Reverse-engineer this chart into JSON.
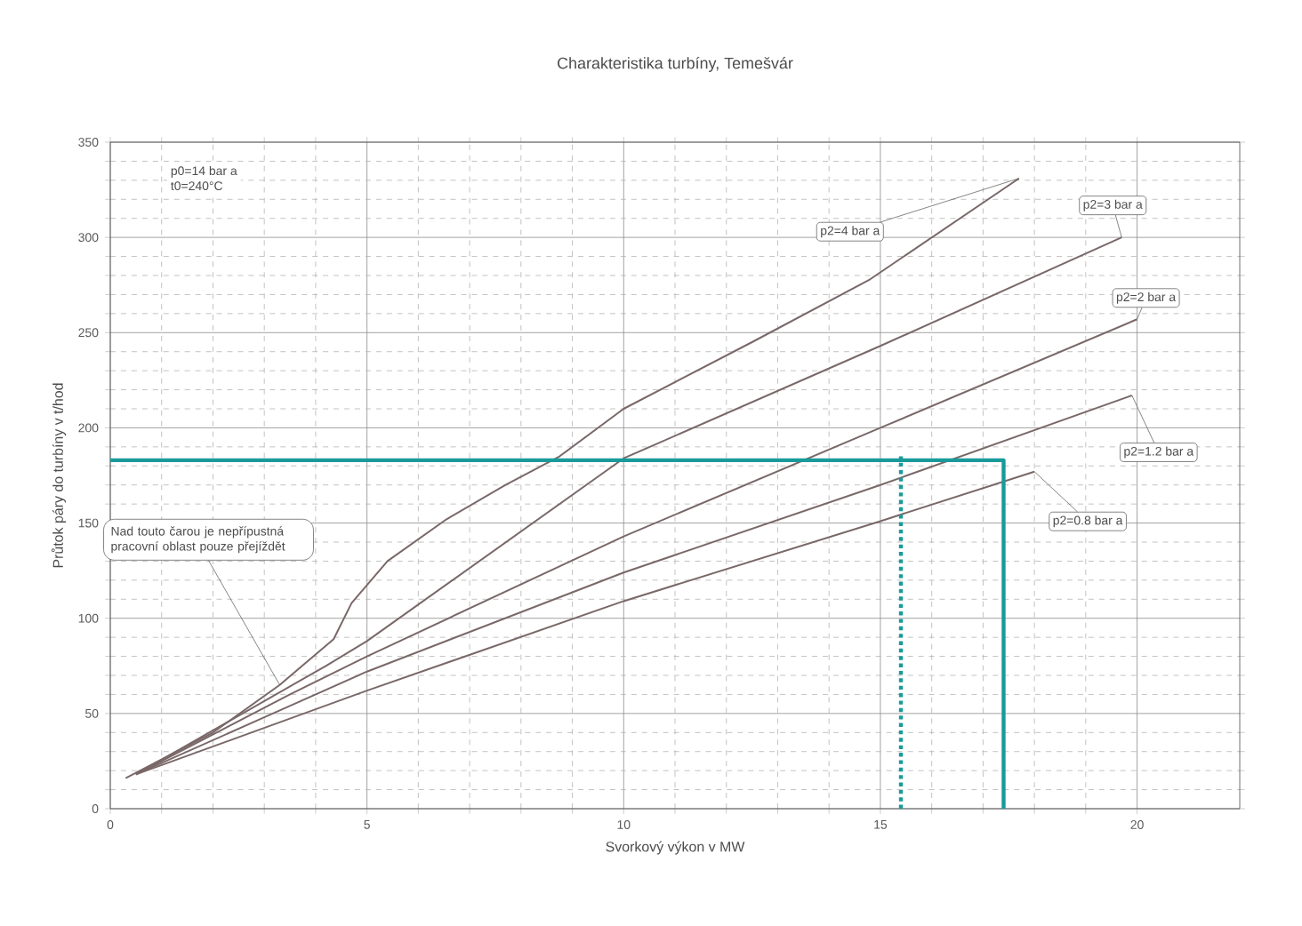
{
  "chart_data": {
    "type": "line",
    "title": "Charakteristika turbíny, Temešvár",
    "xlabel": "Svorkový výkon v MW",
    "ylabel": "Průtok páry do turbíny v t/hod",
    "xlim": [
      0,
      22
    ],
    "ylim": [
      0,
      350
    ],
    "xticks": [
      0,
      5,
      10,
      15,
      20
    ],
    "yticks": [
      0,
      50,
      100,
      150,
      200,
      250,
      300,
      350
    ],
    "grid": true,
    "marker": "none",
    "line_style": "solid",
    "series": [
      {
        "name": "p2=4 bar a",
        "color": "#7a6868",
        "x": [
          0.3,
          2,
          3.3,
          4.35,
          4.7,
          5.4,
          6.55,
          7.7,
          8.75,
          10,
          12.5,
          14.8,
          17.7
        ],
        "values": [
          16,
          40,
          65,
          89,
          108,
          130,
          152,
          170,
          185,
          210,
          245,
          278,
          331
        ]
      },
      {
        "name": "p2=3 bar a",
        "color": "#7a6868",
        "x": [
          0.5,
          4.2,
          5,
          10,
          15,
          19.7
        ],
        "values": [
          18,
          75,
          88,
          184,
          243,
          300
        ]
      },
      {
        "name": "p2=2 bar a",
        "color": "#7a6868",
        "x": [
          0.5,
          3.5,
          5,
          10,
          15,
          20
        ],
        "values": [
          18,
          60,
          80,
          143,
          200,
          257
        ]
      },
      {
        "name": "p2=1.2 bar a",
        "color": "#7a6868",
        "x": [
          0.5,
          3,
          5,
          10,
          15,
          19.9
        ],
        "values": [
          18,
          48,
          72,
          124,
          170,
          217
        ]
      },
      {
        "name": "p2=0.8 bar a",
        "color": "#7a6868",
        "x": [
          0.5,
          5,
          10,
          15,
          18
        ],
        "values": [
          18,
          62,
          109,
          151,
          177
        ]
      },
      {
        "color": "#1a9a9a",
        "x": [
          0,
          17.4,
          17.4
        ],
        "values": [
          183,
          183,
          0
        ]
      },
      {
        "color": "#1a9a9a",
        "line_style": "dotted",
        "x": [
          15.4,
          15.4
        ],
        "values": [
          0,
          185
        ]
      }
    ],
    "annotations": [
      "p0=14 bar a",
      "t0=240°C",
      {
        "text": "Nad touto čarou je nepřípustná pracovní oblast pouze přejíždět",
        "x": 3.3,
        "y": 65
      }
    ]
  }
}
